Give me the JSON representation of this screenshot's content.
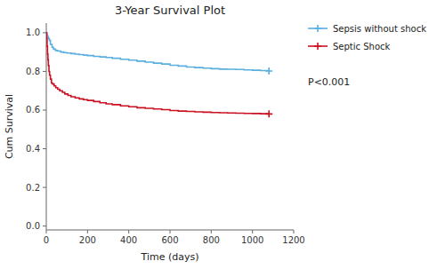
{
  "chart_data": {
    "type": "step",
    "title": "3-Year Survival Plot",
    "xlabel": "Time (days)",
    "ylabel": "Cum Survival",
    "xlim": [
      0,
      1200
    ],
    "ylim": [
      -0.02,
      1.05
    ],
    "xticks": [
      0,
      200,
      400,
      600,
      800,
      1000,
      1200
    ],
    "yticks": [
      {
        "value": 0.0,
        "label": "0.0"
      },
      0.2,
      0.4,
      0.6,
      0.8,
      {
        "value": 1.0,
        "label": "1.0"
      }
    ],
    "legend": "right",
    "annotation": "P<0.001",
    "series": [
      {
        "name": "Sepsis without shock",
        "color": "#5aafe0",
        "x": [
          0,
          3,
          6,
          10,
          15,
          20,
          28,
          35,
          45,
          55,
          70,
          85,
          100,
          120,
          140,
          160,
          180,
          200,
          230,
          260,
          290,
          320,
          360,
          400,
          440,
          480,
          520,
          560,
          600,
          640,
          680,
          720,
          760,
          800,
          840,
          880,
          920,
          960,
          1000,
          1040,
          1080
        ],
        "values": [
          1.0,
          0.99,
          0.98,
          0.97,
          0.96,
          0.94,
          0.925,
          0.915,
          0.908,
          0.905,
          0.9,
          0.897,
          0.895,
          0.892,
          0.889,
          0.887,
          0.884,
          0.882,
          0.878,
          0.875,
          0.872,
          0.868,
          0.863,
          0.858,
          0.853,
          0.848,
          0.843,
          0.838,
          0.832,
          0.828,
          0.823,
          0.82,
          0.817,
          0.814,
          0.812,
          0.811,
          0.81,
          0.808,
          0.806,
          0.804,
          0.802
        ],
        "censor_x": [
          1080
        ],
        "censor_values": [
          0.802
        ]
      },
      {
        "name": "Septic Shock",
        "color": "#cc1122",
        "x": [
          0,
          2,
          4,
          6,
          8,
          10,
          13,
          16,
          20,
          25,
          30,
          38,
          46,
          55,
          65,
          78,
          90,
          105,
          120,
          140,
          160,
          180,
          200,
          230,
          260,
          290,
          320,
          360,
          400,
          440,
          480,
          520,
          560,
          600,
          640,
          680,
          720,
          760,
          800,
          840,
          880,
          920,
          960,
          1000,
          1040,
          1080
        ],
        "values": [
          1.0,
          0.97,
          0.93,
          0.89,
          0.86,
          0.83,
          0.8,
          0.78,
          0.76,
          0.74,
          0.735,
          0.725,
          0.716,
          0.708,
          0.7,
          0.692,
          0.683,
          0.676,
          0.669,
          0.663,
          0.658,
          0.654,
          0.65,
          0.644,
          0.638,
          0.632,
          0.628,
          0.622,
          0.617,
          0.612,
          0.609,
          0.606,
          0.602,
          0.598,
          0.595,
          0.593,
          0.591,
          0.589,
          0.587,
          0.586,
          0.585,
          0.584,
          0.583,
          0.582,
          0.581,
          0.58
        ],
        "censor_x": [
          1080
        ],
        "censor_values": [
          0.58
        ]
      }
    ]
  }
}
